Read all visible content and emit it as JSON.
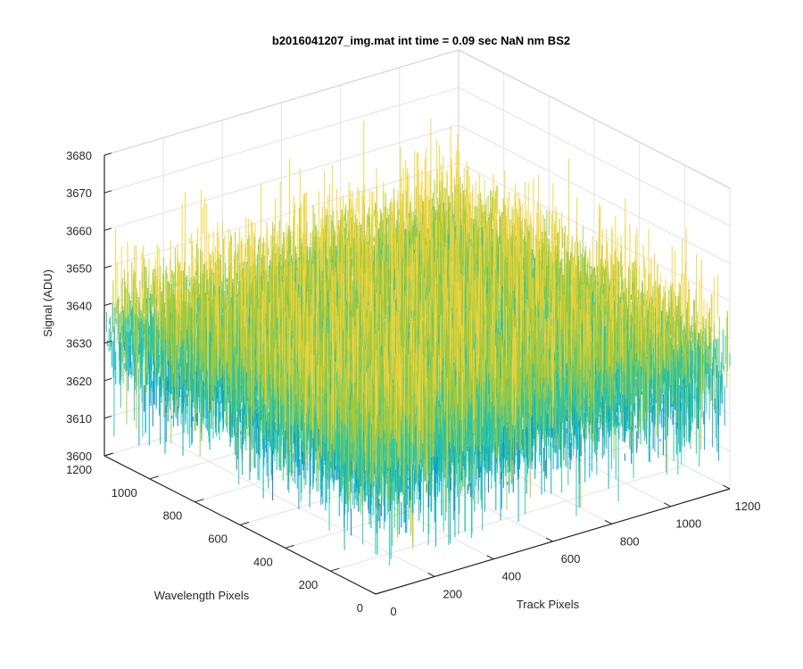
{
  "chart_data": {
    "type": "surface",
    "title": "b2016041207_img.mat int time = 0.09 sec  NaN nm BS2",
    "xlabel": "Track Pixels",
    "ylabel": "Wavelength Pixels",
    "zlabel": "Signal (ADU)",
    "xlim": [
      0,
      1200
    ],
    "ylim": [
      0,
      1200
    ],
    "zlim": [
      3600,
      3680
    ],
    "xticks": [
      0,
      200,
      400,
      600,
      800,
      1000,
      1200
    ],
    "xtick_labels": [
      "0",
      "200",
      "400",
      "600",
      "800",
      "1000",
      "1200"
    ],
    "yticks": [
      0,
      200,
      400,
      600,
      800,
      1000,
      1200
    ],
    "ytick_labels": [
      "0",
      "200",
      "400",
      "600",
      "800",
      "1000",
      "1200"
    ],
    "zticks": [
      3600,
      3610,
      3620,
      3630,
      3640,
      3650,
      3660,
      3670,
      3680
    ],
    "ztick_labels": [
      "3600",
      "3610",
      "3620",
      "3630",
      "3640",
      "3650",
      "3660",
      "3670",
      "3680"
    ],
    "grid": true,
    "surface": {
      "x_range": [
        0,
        1200
      ],
      "y_range": [
        0,
        1200
      ],
      "z_mean": 3633,
      "z_typical_range": [
        3615,
        3660
      ],
      "z_extremes": [
        3605,
        3675
      ]
    },
    "colormap": [
      "#0072BD",
      "#00A6C8",
      "#2EC4A0",
      "#A8C93A",
      "#F2D33C"
    ]
  }
}
